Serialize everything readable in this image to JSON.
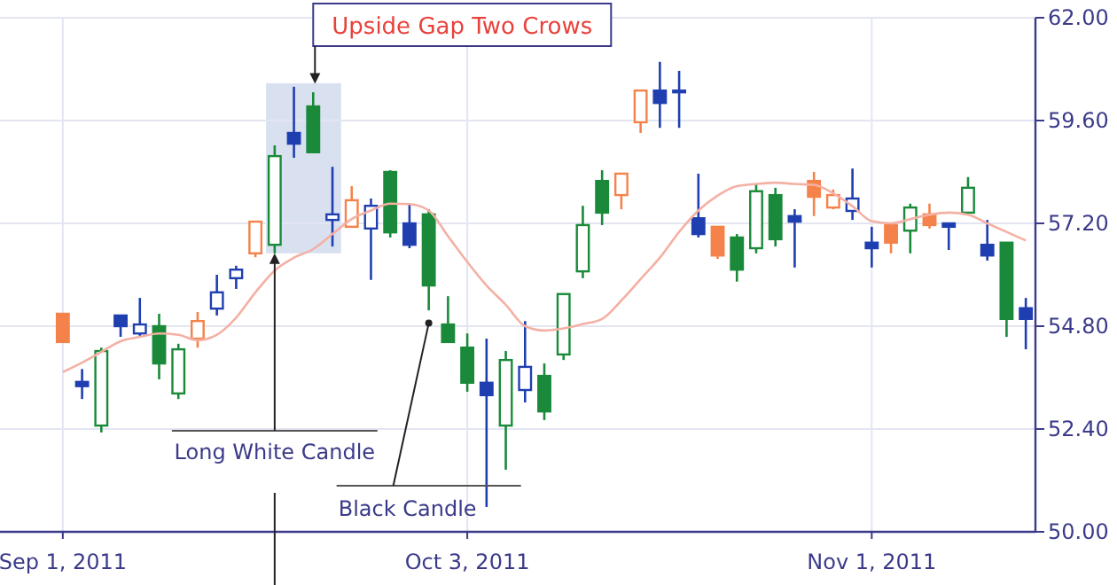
{
  "chart_data": {
    "type": "candlestick",
    "categories": [
      "Sep 1, 2011",
      null,
      null,
      null,
      null,
      null,
      null,
      null,
      null,
      null,
      null,
      null,
      null,
      null,
      null,
      null,
      null,
      null,
      null,
      null,
      null,
      "Oct 3, 2011",
      null,
      null,
      null,
      null,
      null,
      null,
      null,
      null,
      null,
      null,
      null,
      null,
      null,
      null,
      null,
      null,
      null,
      null,
      null,
      null,
      "Nov 1, 2011",
      null,
      null,
      null,
      null,
      null,
      null,
      null,
      null
    ],
    "ohlc": [
      [
        55.09,
        55.09,
        54.43,
        54.43
      ],
      [
        53.5,
        53.8,
        53.1,
        53.4
      ],
      [
        52.48,
        54.3,
        52.32,
        54.22
      ],
      [
        55.05,
        55.05,
        54.55,
        54.8
      ],
      [
        54.63,
        55.46,
        54.55,
        54.84
      ],
      [
        54.8,
        55.09,
        53.56,
        53.93
      ],
      [
        53.23,
        54.39,
        53.1,
        54.26
      ],
      [
        54.51,
        55.13,
        54.3,
        54.92
      ],
      [
        55.21,
        56.0,
        55.05,
        55.59
      ],
      [
        55.92,
        56.21,
        55.67,
        56.12
      ],
      [
        56.5,
        57.24,
        56.41,
        57.24
      ],
      [
        56.7,
        59.02,
        56.5,
        58.77
      ],
      [
        59.31,
        60.39,
        58.73,
        59.06
      ],
      [
        59.93,
        60.26,
        58.86,
        58.86
      ],
      [
        57.28,
        58.52,
        56.66,
        57.41
      ],
      [
        57.12,
        58.07,
        57.12,
        57.74
      ],
      [
        57.08,
        57.78,
        55.88,
        57.61
      ],
      [
        58.4,
        58.44,
        56.87,
        56.99
      ],
      [
        57.2,
        57.66,
        56.62,
        56.7
      ],
      [
        57.41,
        57.53,
        55.17,
        55.75
      ],
      [
        54.84,
        55.5,
        54.43,
        54.43
      ],
      [
        54.3,
        54.63,
        53.27,
        53.48
      ],
      [
        53.48,
        54.51,
        50.58,
        53.19
      ],
      [
        52.48,
        54.22,
        51.45,
        54.01
      ],
      [
        53.31,
        54.92,
        53.02,
        53.85
      ],
      [
        53.64,
        53.93,
        52.61,
        52.81
      ],
      [
        54.14,
        55.55,
        54.01,
        55.55
      ],
      [
        56.08,
        57.61,
        55.92,
        57.16
      ],
      [
        58.19,
        58.44,
        57.16,
        57.45
      ],
      [
        57.86,
        58.36,
        57.53,
        58.36
      ],
      [
        59.56,
        60.3,
        59.31,
        60.3
      ],
      [
        60.3,
        60.97,
        59.43,
        60.01
      ],
      [
        60.26,
        60.76,
        59.43,
        60.3
      ],
      [
        57.32,
        58.36,
        56.87,
        56.95
      ],
      [
        57.12,
        57.12,
        56.37,
        56.45
      ],
      [
        56.87,
        56.95,
        55.84,
        56.12
      ],
      [
        56.62,
        58.11,
        56.5,
        57.95
      ],
      [
        57.86,
        58.03,
        56.66,
        56.83
      ],
      [
        57.37,
        57.53,
        56.17,
        57.24
      ],
      [
        58.19,
        58.4,
        57.37,
        57.82
      ],
      [
        57.57,
        57.99,
        57.53,
        57.86
      ],
      [
        57.49,
        58.48,
        57.28,
        57.78
      ],
      [
        56.75,
        57.12,
        56.17,
        56.62
      ],
      [
        57.16,
        57.16,
        56.5,
        56.75
      ],
      [
        57.03,
        57.66,
        56.5,
        57.57
      ],
      [
        57.41,
        57.66,
        57.08,
        57.16
      ],
      [
        57.2,
        57.2,
        56.58,
        57.12
      ],
      [
        57.45,
        58.28,
        57.45,
        58.03
      ],
      [
        56.7,
        57.28,
        56.33,
        56.45
      ],
      [
        56.75,
        56.75,
        54.55,
        54.97
      ],
      [
        55.22,
        55.46,
        54.26,
        54.97
      ]
    ],
    "colors": [
      "#f4824a",
      "#1f3fb0",
      "#1a8a3a",
      "#1f3fb0",
      "#1f3fb0",
      "#1a8a3a",
      "#1a8a3a",
      "#f4824a",
      "#1f3fb0",
      "#1f3fb0",
      "#f4824a",
      "#1a8a3a",
      "#1f3fb0",
      "#1a8a3a",
      "#1f3fb0",
      "#f4824a",
      "#1f3fb0",
      "#1a8a3a",
      "#1f3fb0",
      "#1a8a3a",
      "#1a8a3a",
      "#1a8a3a",
      "#1f3fb0",
      "#1a8a3a",
      "#1f3fb0",
      "#1a8a3a",
      "#1a8a3a",
      "#1a8a3a",
      "#1a8a3a",
      "#f4824a",
      "#f4824a",
      "#1f3fb0",
      "#1f3fb0",
      "#1f3fb0",
      "#f4824a",
      "#1a8a3a",
      "#1a8a3a",
      "#1a8a3a",
      "#1f3fb0",
      "#f4824a",
      "#f4824a",
      "#1f3fb0",
      "#1f3fb0",
      "#f4824a",
      "#1a8a3a",
      "#f4824a",
      "#1f3fb0",
      "#1a8a3a",
      "#1f3fb0",
      "#1a8a3a",
      "#1f3fb0"
    ],
    "series": [
      {
        "type": "line",
        "color": "#f4b0a4",
        "values": [
          53.73,
          53.95,
          54.2,
          54.45,
          54.55,
          54.63,
          54.6,
          54.47,
          54.6,
          55.0,
          55.59,
          56.1,
          56.4,
          56.6,
          56.95,
          57.3,
          57.5,
          57.66,
          57.65,
          57.5,
          56.9,
          56.3,
          55.75,
          55.3,
          54.8,
          54.7,
          54.75,
          54.85,
          54.97,
          55.4,
          55.9,
          56.4,
          57.0,
          57.5,
          57.85,
          58.07,
          58.12,
          58.15,
          58.12,
          58.1,
          57.9,
          57.6,
          57.25,
          57.2,
          57.3,
          57.4,
          57.45,
          57.4,
          57.2,
          57.0,
          56.8
        ]
      }
    ],
    "ylim": [
      50,
      62
    ],
    "yticks": [
      {
        "value": 50,
        "label": "50.00"
      },
      {
        "value": 52.4,
        "label": "52.40"
      },
      {
        "value": 54.8,
        "label": "54.80"
      },
      {
        "value": 57.2,
        "label": "57.20"
      },
      {
        "value": 59.6,
        "label": "59.60"
      },
      {
        "value": 62,
        "label": "62.00"
      }
    ],
    "grid": true,
    "bands": [
      {
        "axis": "y",
        "from": 56.5,
        "to": 60.47,
        "color": "#d5deee"
      }
    ],
    "annotations": [
      "Upside Gap Two Crows",
      {
        "text": "Long White Candle",
        "y": 56.5
      },
      "Black Candle"
    ]
  }
}
